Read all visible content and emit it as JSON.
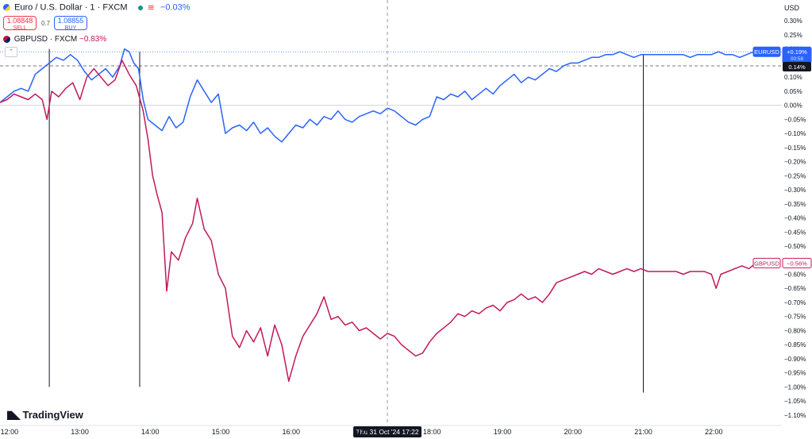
{
  "header": {
    "main_symbol": "Euro / U.S. Dollar · 1 · FXCM",
    "main_change": "−0.03%",
    "sell": {
      "price": "1.08848",
      "label": "SELL"
    },
    "spread": "0.7",
    "buy": {
      "price": "1.08855",
      "label": "BUY"
    },
    "compare_symbol": "GBPUSD · FXCM",
    "compare_change": "−0.83%",
    "collapse_glyph": "⌃"
  },
  "currency_label": "USD",
  "branding": "TradingView",
  "crosshair_label": "Thu 31 Oct '24   17:22",
  "colors": {
    "eurusd": "#2962ff",
    "gbpusd": "#c2185b",
    "grid": "#f0f3fa",
    "axis_text": "#131722",
    "current_label": "#131722"
  },
  "chart_data": {
    "type": "line",
    "x_unit": "time (HH:MM), 31 Oct 2024",
    "y_unit": "percent change",
    "xlim": [
      "11:52",
      "22:58"
    ],
    "ylim": [
      -1.12,
      0.34
    ],
    "x_ticks": [
      "12:00",
      "13:00",
      "14:00",
      "15:00",
      "16:00",
      "17:00",
      "18:00",
      "19:00",
      "20:00",
      "21:00",
      "22:00"
    ],
    "y_ticks": [
      0.3,
      0.25,
      0.2,
      0.15,
      0.1,
      0.05,
      0.0,
      -0.05,
      -0.1,
      -0.15,
      -0.2,
      -0.25,
      -0.3,
      -0.35,
      -0.4,
      -0.45,
      -0.5,
      -0.55,
      -0.6,
      -0.65,
      -0.7,
      -0.75,
      -0.8,
      -0.85,
      -0.9,
      -0.95,
      -1.0,
      -1.05,
      -1.1
    ],
    "y_tick_labels": [
      "0.30%",
      "0.25%",
      "0.20%",
      "0.15%",
      "0.10%",
      "0.05%",
      "0.00%",
      "−0.05%",
      "−0.10%",
      "−0.15%",
      "−0.20%",
      "−0.25%",
      "−0.30%",
      "−0.35%",
      "−0.40%",
      "−0.45%",
      "−0.50%",
      "−0.55%",
      "−0.60%",
      "−0.65%",
      "−0.70%",
      "−0.75%",
      "−0.80%",
      "−0.85%",
      "−0.90%",
      "−0.95%",
      "−1.00%",
      "−1.05%",
      "−1.10%"
    ],
    "series": [
      {
        "name": "EURUSD",
        "key": "eurusd",
        "last_label": "+0.19%",
        "sub_label": "00:58",
        "points": [
          [
            "11:52",
            0.01
          ],
          [
            "11:58",
            0.03
          ],
          [
            "12:04",
            0.05
          ],
          [
            "12:10",
            0.06
          ],
          [
            "12:16",
            0.05
          ],
          [
            "12:22",
            0.11
          ],
          [
            "12:28",
            0.13
          ],
          [
            "12:34",
            0.15
          ],
          [
            "12:40",
            0.17
          ],
          [
            "12:46",
            0.16
          ],
          [
            "12:52",
            0.18
          ],
          [
            "12:58",
            0.16
          ],
          [
            "13:04",
            0.12
          ],
          [
            "13:10",
            0.09
          ],
          [
            "13:16",
            0.11
          ],
          [
            "13:22",
            0.13
          ],
          [
            "13:28",
            0.1
          ],
          [
            "13:34",
            0.14
          ],
          [
            "13:38",
            0.2
          ],
          [
            "13:42",
            0.19
          ],
          [
            "13:46",
            0.15
          ],
          [
            "13:50",
            0.13
          ],
          [
            "13:54",
            0.02
          ],
          [
            "13:58",
            -0.05
          ],
          [
            "14:04",
            -0.07
          ],
          [
            "14:10",
            -0.09
          ],
          [
            "14:16",
            -0.04
          ],
          [
            "14:22",
            -0.08
          ],
          [
            "14:28",
            -0.06
          ],
          [
            "14:34",
            0.03
          ],
          [
            "14:40",
            0.09
          ],
          [
            "14:46",
            0.05
          ],
          [
            "14:52",
            0.01
          ],
          [
            "14:58",
            0.04
          ],
          [
            "15:04",
            -0.1
          ],
          [
            "15:10",
            -0.08
          ],
          [
            "15:16",
            -0.07
          ],
          [
            "15:22",
            -0.09
          ],
          [
            "15:28",
            -0.06
          ],
          [
            "15:34",
            -0.1
          ],
          [
            "15:40",
            -0.08
          ],
          [
            "15:46",
            -0.11
          ],
          [
            "15:52",
            -0.13
          ],
          [
            "15:58",
            -0.1
          ],
          [
            "16:04",
            -0.07
          ],
          [
            "16:10",
            -0.08
          ],
          [
            "16:16",
            -0.05
          ],
          [
            "16:22",
            -0.07
          ],
          [
            "16:28",
            -0.04
          ],
          [
            "16:34",
            -0.05
          ],
          [
            "16:40",
            -0.02
          ],
          [
            "16:46",
            -0.05
          ],
          [
            "16:52",
            -0.06
          ],
          [
            "16:58",
            -0.04
          ],
          [
            "17:04",
            -0.03
          ],
          [
            "17:10",
            -0.02
          ],
          [
            "17:16",
            -0.03
          ],
          [
            "17:22",
            -0.01
          ],
          [
            "17:28",
            -0.02
          ],
          [
            "17:34",
            -0.04
          ],
          [
            "17:40",
            -0.06
          ],
          [
            "17:46",
            -0.07
          ],
          [
            "17:52",
            -0.05
          ],
          [
            "17:58",
            -0.04
          ],
          [
            "18:04",
            0.03
          ],
          [
            "18:10",
            0.02
          ],
          [
            "18:16",
            0.04
          ],
          [
            "18:22",
            0.03
          ],
          [
            "18:28",
            0.05
          ],
          [
            "18:34",
            0.02
          ],
          [
            "18:40",
            0.04
          ],
          [
            "18:46",
            0.06
          ],
          [
            "18:52",
            0.04
          ],
          [
            "18:58",
            0.07
          ],
          [
            "19:04",
            0.09
          ],
          [
            "19:10",
            0.11
          ],
          [
            "19:16",
            0.08
          ],
          [
            "19:22",
            0.1
          ],
          [
            "19:28",
            0.09
          ],
          [
            "19:34",
            0.11
          ],
          [
            "19:40",
            0.13
          ],
          [
            "19:46",
            0.12
          ],
          [
            "19:52",
            0.14
          ],
          [
            "19:58",
            0.15
          ],
          [
            "20:04",
            0.15
          ],
          [
            "20:10",
            0.16
          ],
          [
            "20:16",
            0.17
          ],
          [
            "20:22",
            0.17
          ],
          [
            "20:28",
            0.18
          ],
          [
            "20:34",
            0.18
          ],
          [
            "20:40",
            0.19
          ],
          [
            "20:46",
            0.18
          ],
          [
            "20:52",
            0.17
          ],
          [
            "20:58",
            0.18
          ],
          [
            "21:04",
            0.18
          ],
          [
            "21:10",
            0.18
          ],
          [
            "21:16",
            0.18
          ],
          [
            "21:22",
            0.18
          ],
          [
            "21:28",
            0.18
          ],
          [
            "21:34",
            0.18
          ],
          [
            "21:40",
            0.17
          ],
          [
            "21:46",
            0.18
          ],
          [
            "21:52",
            0.18
          ],
          [
            "21:58",
            0.18
          ],
          [
            "22:04",
            0.19
          ],
          [
            "22:10",
            0.18
          ],
          [
            "22:16",
            0.18
          ],
          [
            "22:22",
            0.17
          ],
          [
            "22:28",
            0.18
          ],
          [
            "22:34",
            0.19
          ],
          [
            "22:40",
            0.19
          ]
        ]
      },
      {
        "name": "GBPUSD",
        "key": "gbpusd",
        "last_label": "−0.56%",
        "points": [
          [
            "11:52",
            0.01
          ],
          [
            "11:58",
            0.02
          ],
          [
            "12:04",
            0.04
          ],
          [
            "12:10",
            0.03
          ],
          [
            "12:16",
            0.02
          ],
          [
            "12:22",
            0.04
          ],
          [
            "12:28",
            0.02
          ],
          [
            "12:32",
            -0.05
          ],
          [
            "12:36",
            0.05
          ],
          [
            "12:42",
            0.03
          ],
          [
            "12:48",
            0.06
          ],
          [
            "12:54",
            0.08
          ],
          [
            "13:00",
            0.02
          ],
          [
            "13:06",
            0.1
          ],
          [
            "13:12",
            0.13
          ],
          [
            "13:18",
            0.1
          ],
          [
            "13:24",
            0.07
          ],
          [
            "13:30",
            0.09
          ],
          [
            "13:36",
            0.16
          ],
          [
            "13:42",
            0.11
          ],
          [
            "13:48",
            0.07
          ],
          [
            "13:54",
            -0.02
          ],
          [
            "13:58",
            -0.12
          ],
          [
            "14:02",
            -0.25
          ],
          [
            "14:06",
            -0.32
          ],
          [
            "14:10",
            -0.38
          ],
          [
            "14:14",
            -0.66
          ],
          [
            "14:18",
            -0.52
          ],
          [
            "14:24",
            -0.55
          ],
          [
            "14:30",
            -0.47
          ],
          [
            "14:36",
            -0.42
          ],
          [
            "14:40",
            -0.33
          ],
          [
            "14:46",
            -0.44
          ],
          [
            "14:52",
            -0.48
          ],
          [
            "14:58",
            -0.6
          ],
          [
            "15:04",
            -0.65
          ],
          [
            "15:10",
            -0.82
          ],
          [
            "15:16",
            -0.86
          ],
          [
            "15:22",
            -0.8
          ],
          [
            "15:28",
            -0.84
          ],
          [
            "15:34",
            -0.79
          ],
          [
            "15:40",
            -0.89
          ],
          [
            "15:46",
            -0.78
          ],
          [
            "15:52",
            -0.85
          ],
          [
            "15:58",
            -0.98
          ],
          [
            "16:04",
            -0.89
          ],
          [
            "16:10",
            -0.82
          ],
          [
            "16:16",
            -0.78
          ],
          [
            "16:22",
            -0.74
          ],
          [
            "16:28",
            -0.68
          ],
          [
            "16:34",
            -0.76
          ],
          [
            "16:40",
            -0.75
          ],
          [
            "16:46",
            -0.78
          ],
          [
            "16:52",
            -0.77
          ],
          [
            "16:58",
            -0.8
          ],
          [
            "17:04",
            -0.79
          ],
          [
            "17:10",
            -0.81
          ],
          [
            "17:16",
            -0.83
          ],
          [
            "17:22",
            -0.81
          ],
          [
            "17:28",
            -0.82
          ],
          [
            "17:34",
            -0.85
          ],
          [
            "17:40",
            -0.87
          ],
          [
            "17:46",
            -0.89
          ],
          [
            "17:52",
            -0.88
          ],
          [
            "17:58",
            -0.84
          ],
          [
            "18:04",
            -0.81
          ],
          [
            "18:10",
            -0.79
          ],
          [
            "18:16",
            -0.77
          ],
          [
            "18:22",
            -0.74
          ],
          [
            "18:28",
            -0.75
          ],
          [
            "18:34",
            -0.73
          ],
          [
            "18:40",
            -0.74
          ],
          [
            "18:46",
            -0.72
          ],
          [
            "18:52",
            -0.71
          ],
          [
            "18:58",
            -0.73
          ],
          [
            "19:04",
            -0.7
          ],
          [
            "19:10",
            -0.69
          ],
          [
            "19:16",
            -0.67
          ],
          [
            "19:22",
            -0.69
          ],
          [
            "19:28",
            -0.68
          ],
          [
            "19:34",
            -0.7
          ],
          [
            "19:40",
            -0.67
          ],
          [
            "19:46",
            -0.63
          ],
          [
            "19:52",
            -0.62
          ],
          [
            "19:58",
            -0.61
          ],
          [
            "20:04",
            -0.6
          ],
          [
            "20:10",
            -0.59
          ],
          [
            "20:16",
            -0.6
          ],
          [
            "20:22",
            -0.58
          ],
          [
            "20:28",
            -0.59
          ],
          [
            "20:34",
            -0.6
          ],
          [
            "20:40",
            -0.59
          ],
          [
            "20:46",
            -0.58
          ],
          [
            "20:52",
            -0.59
          ],
          [
            "20:58",
            -0.58
          ],
          [
            "21:04",
            -0.59
          ],
          [
            "21:10",
            -0.59
          ],
          [
            "21:16",
            -0.59
          ],
          [
            "21:22",
            -0.59
          ],
          [
            "21:28",
            -0.59
          ],
          [
            "21:34",
            -0.6
          ],
          [
            "21:40",
            -0.59
          ],
          [
            "21:46",
            -0.59
          ],
          [
            "21:52",
            -0.59
          ],
          [
            "21:58",
            -0.6
          ],
          [
            "22:02",
            -0.65
          ],
          [
            "22:06",
            -0.6
          ],
          [
            "22:12",
            -0.59
          ],
          [
            "22:18",
            -0.58
          ],
          [
            "22:24",
            -0.57
          ],
          [
            "22:30",
            -0.58
          ],
          [
            "22:36",
            -0.56
          ],
          [
            "22:40",
            -0.56
          ]
        ]
      }
    ],
    "reference_lines": [
      {
        "kind": "zero",
        "value": 0.0
      },
      {
        "kind": "dotted-last-eurusd",
        "value": 0.19
      },
      {
        "kind": "dashed-current",
        "value": 0.14,
        "label": "0.14%"
      }
    ],
    "vertical_markers": [
      {
        "time": "12:34",
        "top": 0.2,
        "bottom": -1.0
      },
      {
        "time": "13:51",
        "top": 0.19,
        "bottom": -1.0
      },
      {
        "time": "21:00",
        "top": 0.18,
        "bottom": -1.02
      }
    ],
    "crosshair_time": "17:22",
    "grid": false,
    "legend": "top-left"
  }
}
